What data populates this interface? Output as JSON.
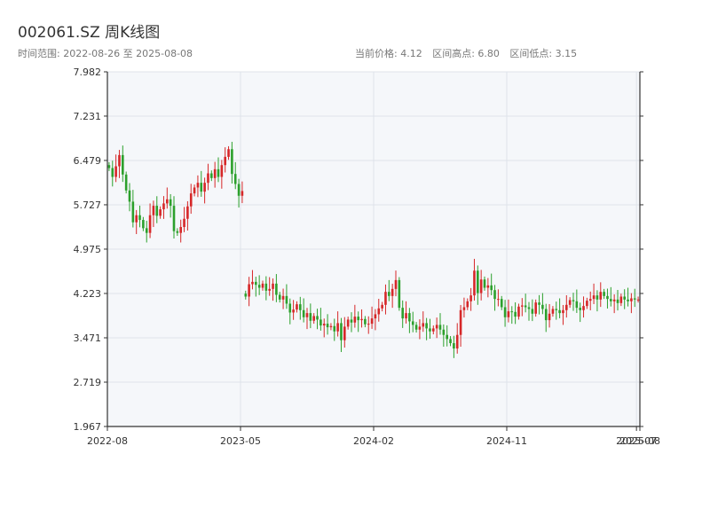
{
  "header": {
    "title": "002061.SZ 周K线图",
    "range_label": "时间范围: 2022-08-26 至 2025-08-08",
    "current_price": "当前价格: 4.12",
    "range_high": "区间高点: 6.80",
    "range_low": "区间低点: 3.15"
  },
  "colors": {
    "up": "#d62728",
    "down": "#2ca02c",
    "plot_bg": "#f5f7fa",
    "grid": "#dfe3ea",
    "axis": "#333333"
  },
  "chart_data": {
    "type": "candlestick",
    "title": "002061.SZ 周K线图",
    "ylim": [
      1.967,
      7.982
    ],
    "y_ticks": [
      "7.982",
      "7.231",
      "6.479",
      "5.727",
      "4.975",
      "4.223",
      "3.471",
      "2.719",
      "1.967"
    ],
    "x_ticks": [
      "2022-08",
      "2023-05",
      "2024-02",
      "2024-11",
      "2025-07",
      "2025-08"
    ],
    "x_tick_weeks": [
      0,
      39,
      78,
      117,
      155,
      156
    ],
    "grid": true,
    "start_week": 0,
    "weeks": 156,
    "closes": [
      6.35,
      6.2,
      6.38,
      6.57,
      6.24,
      5.97,
      5.78,
      5.43,
      5.55,
      5.47,
      5.33,
      5.25,
      5.55,
      5.71,
      5.54,
      5.65,
      5.75,
      5.82,
      5.71,
      5.28,
      5.25,
      5.35,
      5.49,
      5.7,
      5.92,
      6.02,
      6.1,
      5.95,
      6.1,
      6.26,
      6.18,
      6.33,
      6.2,
      6.4,
      6.54,
      6.67,
      6.25,
      6.08,
      5.88,
      5.96,
      4.17,
      4.38,
      4.42,
      4.37,
      4.32,
      4.39,
      4.27,
      4.3,
      4.39,
      4.2,
      4.12,
      4.18,
      4.05,
      3.9,
      3.95,
      4.04,
      3.94,
      3.82,
      3.89,
      3.76,
      3.84,
      3.78,
      3.68,
      3.71,
      3.65,
      3.67,
      3.58,
      3.72,
      3.43,
      3.66,
      3.78,
      3.73,
      3.83,
      3.77,
      3.79,
      3.7,
      3.71,
      3.8,
      3.87,
      3.97,
      4.03,
      4.25,
      4.18,
      4.3,
      4.45,
      3.98,
      3.8,
      3.89,
      3.75,
      3.69,
      3.61,
      3.66,
      3.72,
      3.63,
      3.58,
      3.63,
      3.69,
      3.61,
      3.52,
      3.45,
      3.38,
      3.29,
      3.52,
      3.94,
      3.99,
      4.09,
      4.19,
      4.61,
      4.23,
      4.46,
      4.32,
      4.36,
      4.28,
      4.13,
      4.13,
      3.99,
      3.82,
      3.92,
      3.91,
      3.83,
      4.0,
      4.02,
      3.99,
      3.96,
      3.88,
      4.07,
      4.03,
      3.96,
      3.77,
      3.88,
      3.96,
      3.94,
      3.89,
      3.94,
      4.03,
      4.11,
      4.09,
      3.98,
      3.94,
      4.01,
      4.1,
      4.13,
      4.19,
      4.12,
      4.25,
      4.18,
      4.13,
      4.09,
      4.12,
      4.06,
      4.17,
      4.12,
      4.09,
      4.14,
      4.12,
      4.12
    ]
  }
}
